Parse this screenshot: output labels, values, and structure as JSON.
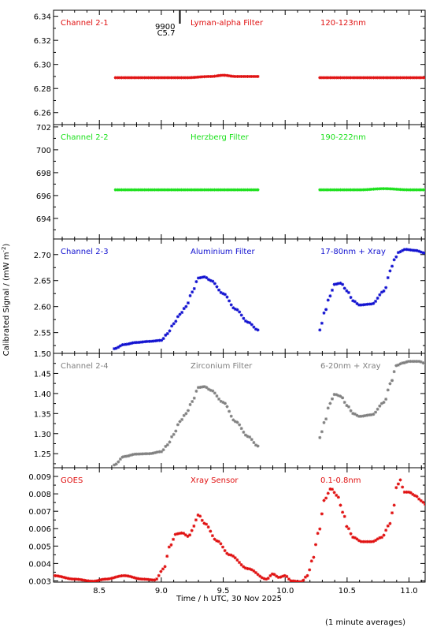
{
  "xlabel": "Time / h UTC, 30 Nov 2025",
  "ylabel": "Calibrated Signal / (mW m",
  "ylabel_sup": "-2",
  "ylabel_end": ")",
  "footnote": "(1 minute averages)",
  "marker": {
    "x": 9.15,
    "label_top": "9900",
    "label_bottom": "C5.7"
  },
  "chart_data": [
    {
      "type": "scatter",
      "channel": "Channel 2-1",
      "filter": "Lyman-alpha Filter",
      "band": "120-123nm",
      "color": "#e01010",
      "xlim": [
        8.13,
        11.13
      ],
      "ylim": [
        6.25,
        6.345
      ],
      "yticks": [
        6.26,
        6.28,
        6.3,
        6.32,
        6.34
      ],
      "ytick_labels": [
        "6.26",
        "6.28",
        "6.30",
        "6.32",
        "6.34"
      ],
      "segments": [
        {
          "x": [
            8.63,
            8.9,
            9.2,
            9.4,
            9.5,
            9.6,
            9.78
          ],
          "y": [
            6.289,
            6.289,
            6.289,
            6.29,
            6.291,
            6.29,
            6.29
          ]
        },
        {
          "x": [
            10.28,
            10.5,
            10.8,
            11.0,
            11.13
          ],
          "y": [
            6.289,
            6.289,
            6.289,
            6.289,
            6.289
          ]
        }
      ]
    },
    {
      "type": "scatter",
      "channel": "Channel 2-2",
      "filter": "Herzberg Filter",
      "band": "190-222nm",
      "color": "#19e019",
      "xlim": [
        8.13,
        11.13
      ],
      "ylim": [
        692.2,
        702.2
      ],
      "yticks": [
        694,
        696,
        698,
        700,
        702
      ],
      "ytick_labels": [
        "694",
        "696",
        "698",
        "700",
        "702"
      ],
      "segments": [
        {
          "x": [
            8.63,
            8.9,
            9.2,
            9.5,
            9.78
          ],
          "y": [
            696.5,
            696.5,
            696.5,
            696.5,
            696.5
          ]
        },
        {
          "x": [
            10.28,
            10.6,
            10.8,
            11.0,
            11.13
          ],
          "y": [
            696.5,
            696.5,
            696.6,
            696.5,
            696.5
          ]
        }
      ]
    },
    {
      "type": "scatter",
      "channel": "Channel 2-3",
      "filter": "Aluminium Filter",
      "band": "17-80nm + Xray",
      "color": "#1111d0",
      "xlim": [
        8.13,
        11.13
      ],
      "ylim": [
        2.51,
        2.73
      ],
      "yticks": [
        2.55,
        2.6,
        2.65,
        2.7
      ],
      "ytick_labels": [
        "2.55",
        "2.60",
        "2.65",
        "2.70"
      ],
      "segments": [
        {
          "x": [
            8.62,
            8.7,
            8.8,
            8.9,
            9.0,
            9.05,
            9.1,
            9.15,
            9.2,
            9.25,
            9.3,
            9.35,
            9.4,
            9.5,
            9.6,
            9.7,
            9.78
          ],
          "y": [
            2.519,
            2.527,
            2.531,
            2.533,
            2.535,
            2.548,
            2.567,
            2.585,
            2.6,
            2.628,
            2.655,
            2.657,
            2.65,
            2.625,
            2.595,
            2.57,
            2.555
          ]
        },
        {
          "x": [
            10.28,
            10.32,
            10.36,
            10.4,
            10.45,
            10.5,
            10.55,
            10.6,
            10.7,
            10.8,
            10.85,
            10.88,
            10.92,
            10.97,
            11.05,
            11.13
          ],
          "y": [
            2.555,
            2.59,
            2.62,
            2.643,
            2.645,
            2.63,
            2.611,
            2.603,
            2.605,
            2.63,
            2.669,
            2.69,
            2.705,
            2.71,
            2.708,
            2.703
          ]
        }
      ]
    },
    {
      "type": "scatter",
      "channel": "Channel 2-4",
      "filter": "Zirconium Filter",
      "band": "6-20nm + Xray",
      "color": "#808080",
      "xlim": [
        8.13,
        11.13
      ],
      "ylim": [
        1.215,
        1.5
      ],
      "yticks": [
        1.25,
        1.3,
        1.35,
        1.4,
        1.45,
        1.5
      ],
      "ytick_labels": [
        "1.25",
        "1.30",
        "1.35",
        "1.40",
        "1.45",
        "1.50"
      ],
      "segments": [
        {
          "x": [
            8.62,
            8.7,
            8.8,
            8.9,
            9.0,
            9.05,
            9.1,
            9.15,
            9.2,
            9.25,
            9.3,
            9.35,
            9.4,
            9.5,
            9.6,
            9.7,
            9.78
          ],
          "y": [
            1.222,
            1.243,
            1.249,
            1.25,
            1.255,
            1.272,
            1.298,
            1.33,
            1.35,
            1.38,
            1.415,
            1.417,
            1.408,
            1.378,
            1.33,
            1.293,
            1.269
          ]
        },
        {
          "x": [
            10.28,
            10.32,
            10.36,
            10.4,
            10.45,
            10.5,
            10.55,
            10.6,
            10.7,
            10.8,
            10.85,
            10.9,
            10.95,
            11.0,
            11.08,
            11.13
          ],
          "y": [
            1.29,
            1.33,
            1.375,
            1.398,
            1.393,
            1.37,
            1.35,
            1.343,
            1.347,
            1.378,
            1.425,
            1.47,
            1.476,
            1.48,
            1.48,
            1.475
          ]
        }
      ]
    },
    {
      "type": "scatter",
      "channel": "GOES",
      "filter": "Xray Sensor",
      "band": "0.1-0.8nm",
      "color": "#e01010",
      "xlim": [
        8.13,
        11.13
      ],
      "ylim": [
        0.00293,
        0.0095
      ],
      "yticks": [
        0.003,
        0.004,
        0.005,
        0.006,
        0.007,
        0.008,
        0.009
      ],
      "ytick_labels": [
        "0.003",
        "0.004",
        "0.005",
        "0.006",
        "0.007",
        "0.008",
        "0.009"
      ],
      "segments": [
        {
          "x": [
            8.13,
            8.3,
            8.45,
            8.55,
            8.7,
            8.85,
            8.95,
            9.02,
            9.07,
            9.12,
            9.17,
            9.22,
            9.25,
            9.28,
            9.3,
            9.35,
            9.45,
            9.55,
            9.7,
            9.85,
            9.9,
            9.95,
            10.0,
            10.05,
            10.13,
            10.18,
            10.22,
            10.27,
            10.32,
            10.37,
            10.42,
            10.47,
            10.5,
            10.55,
            10.62,
            10.7,
            10.78,
            10.84,
            10.87,
            10.9,
            10.93,
            10.96,
            11.0,
            11.05,
            11.1,
            11.13
          ],
          "y": [
            0.0033,
            0.0031,
            0.00298,
            0.0031,
            0.0033,
            0.0031,
            0.00305,
            0.0037,
            0.005,
            0.0057,
            0.00575,
            0.00555,
            0.0059,
            0.0065,
            0.0068,
            0.0063,
            0.0053,
            0.0045,
            0.0037,
            0.0031,
            0.0034,
            0.0032,
            0.0033,
            0.003,
            0.00295,
            0.0033,
            0.0042,
            0.0058,
            0.0077,
            0.0083,
            0.0079,
            0.0069,
            0.0061,
            0.0055,
            0.00525,
            0.00525,
            0.0055,
            0.0062,
            0.007,
            0.0084,
            0.0088,
            0.0081,
            0.0081,
            0.0079,
            0.0076,
            0.0074
          ]
        }
      ]
    }
  ],
  "xticks": [
    8.5,
    9.0,
    9.5,
    10.0,
    10.5,
    11.0
  ],
  "xtick_labels": [
    "8.5",
    "9.0",
    "9.5",
    "10.0",
    "10.5",
    "11.0"
  ]
}
